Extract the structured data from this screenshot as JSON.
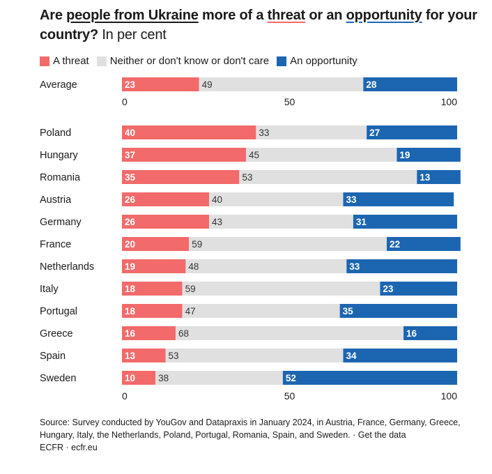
{
  "title": {
    "pre": "Are ",
    "underline1": "people from Ukraine",
    "mid1": " more of a ",
    "underline2": "threat",
    "mid2": " or an ",
    "underline3": "opportunity",
    "post": " for your country?",
    "unit": " In per cent"
  },
  "colors": {
    "threat": "#f26a6a",
    "neither": "#e0e0e0",
    "opportunity": "#1c66b1"
  },
  "footer": {
    "source": "Source: Survey conducted by YouGov and Datapraxis in January 2024, in Austria, France, Germany, Greece, Hungary, Italy, the Netherlands, Poland, Portugal, Romania, Spain, and Sweden.",
    "sep": " · ",
    "link": "Get the data",
    "credit": "ECFR · ecfr.eu"
  },
  "chart_data": {
    "type": "bar",
    "stacked": true,
    "orientation": "horizontal",
    "categories": [
      "Average",
      "Poland",
      "Hungary",
      "Romania",
      "Austria",
      "Germany",
      "France",
      "Netherlands",
      "Italy",
      "Portugal",
      "Greece",
      "Spain",
      "Sweden"
    ],
    "series": [
      {
        "name": "A threat",
        "values": [
          23,
          40,
          37,
          35,
          26,
          26,
          20,
          19,
          18,
          18,
          16,
          13,
          10
        ]
      },
      {
        "name": "Neither or don't know or don't care",
        "values": [
          49,
          33,
          45,
          53,
          40,
          43,
          59,
          48,
          59,
          47,
          68,
          53,
          38
        ]
      },
      {
        "name": "An opportunity",
        "values": [
          28,
          27,
          19,
          13,
          33,
          31,
          22,
          33,
          23,
          35,
          16,
          34,
          52
        ]
      }
    ],
    "xlim": [
      0,
      100
    ],
    "xticks": [
      "0",
      "50",
      "100"
    ],
    "legend_position": "top-left",
    "grid": false
  }
}
